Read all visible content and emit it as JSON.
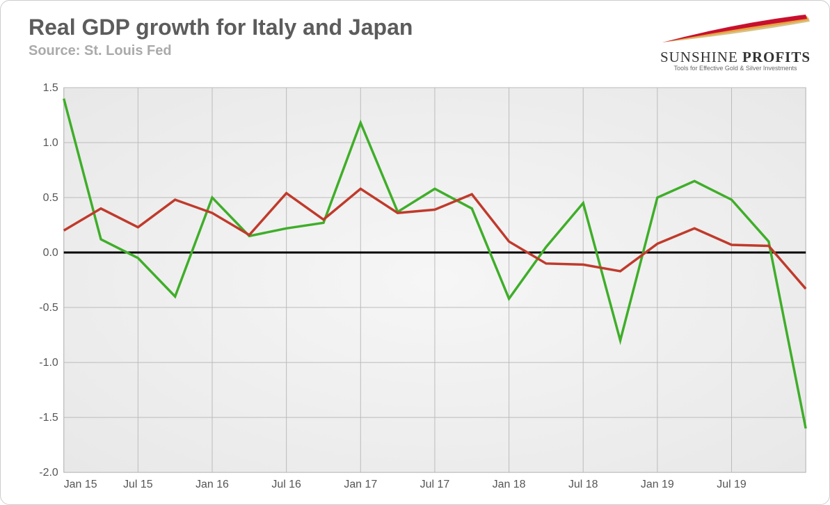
{
  "header": {
    "title": "Real GDP growth for Italy and Japan",
    "source": "Source: St. Louis Fed"
  },
  "logo": {
    "brand_main": "SUNSHINE",
    "brand_bold": "PROFITS",
    "tagline": "Tools for Effective Gold & Silver Investments",
    "swoosh_colors": [
      "#c8102e",
      "#e8a33d",
      "#d6c28a"
    ]
  },
  "chart": {
    "type": "line",
    "ylim": [
      -2.0,
      1.5
    ],
    "yticks": [
      -2.0,
      -1.5,
      -1.0,
      -0.5,
      0.0,
      0.5,
      1.0,
      1.5
    ],
    "ytick_labels": [
      "-2.0",
      "-1.5",
      "-1.0",
      "-0.5",
      "0.0",
      "0.5",
      "1.0",
      "1.5"
    ],
    "x_count": 21,
    "xtick_indices": [
      0,
      2,
      4,
      6,
      8,
      10,
      12,
      14,
      16,
      18
    ],
    "xtick_labels": [
      "Jan 15",
      "Jul 15",
      "Jan 16",
      "Jul 16",
      "Jan 17",
      "Jul 17",
      "Jan 18",
      "Jul 18",
      "Jan 19",
      "Jul 19"
    ],
    "grid_color": "#bbbbbb",
    "band_colors": {
      "dark": "#e7e7e7",
      "light": "#f6f6f6"
    },
    "zero_line_color": "#000000",
    "axis_font_size": 16,
    "axis_text_color": "#555555",
    "line_width": 3.5,
    "series": [
      {
        "name": "series-green",
        "color": "#3fae29",
        "values": [
          1.4,
          0.12,
          -0.05,
          -0.4,
          0.5,
          0.15,
          0.22,
          0.27,
          1.18,
          0.37,
          0.58,
          0.4,
          -0.42,
          0.05,
          0.45,
          -0.8,
          0.5,
          0.65,
          0.48,
          0.1,
          -1.6
        ]
      },
      {
        "name": "series-red",
        "color": "#c03a2b",
        "values": [
          0.2,
          0.4,
          0.23,
          0.48,
          0.36,
          0.16,
          0.54,
          0.3,
          0.58,
          0.36,
          0.39,
          0.53,
          0.1,
          -0.1,
          -0.11,
          -0.17,
          0.08,
          0.22,
          0.07,
          0.06,
          -0.33
        ]
      }
    ]
  }
}
